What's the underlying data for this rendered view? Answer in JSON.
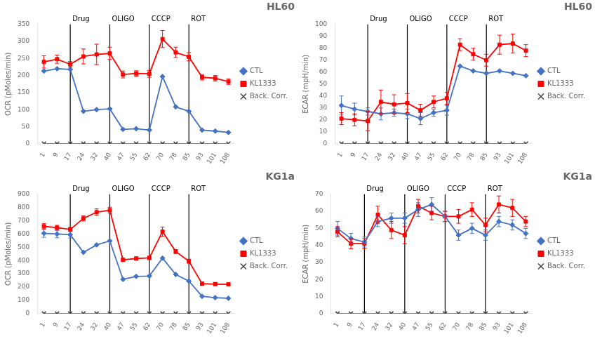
{
  "chart_data": [
    {
      "type": "line",
      "title": "HL60",
      "y_label": "OCR (pMoles/min)",
      "categories": [
        1,
        9,
        17,
        24,
        32,
        40,
        47,
        55,
        62,
        70,
        78,
        85,
        93,
        101,
        108
      ],
      "series": [
        {
          "name": "CTL",
          "color": "#4472C4",
          "marker": "diamond",
          "line_style": "solid",
          "values": [
            213,
            220,
            218,
            95,
            100,
            102,
            42,
            44,
            40,
            197,
            108,
            95,
            40,
            37,
            33
          ],
          "errors": [
            0,
            0,
            0,
            0,
            0,
            0,
            0,
            0,
            0,
            0,
            0,
            0,
            0,
            0,
            0
          ]
        },
        {
          "name": "KL1333",
          "color": "#FF0000",
          "marker": "square",
          "line_style": "solid",
          "values": [
            240,
            248,
            233,
            256,
            262,
            265,
            203,
            206,
            205,
            307,
            268,
            255,
            195,
            192,
            182
          ],
          "errors": [
            18,
            12,
            8,
            22,
            30,
            18,
            10,
            8,
            10,
            25,
            15,
            12,
            8,
            8,
            8
          ]
        },
        {
          "name": "Back. Corr.",
          "color": "#404040",
          "marker": "x",
          "line_style": "solid",
          "values": [
            0,
            0,
            0,
            0,
            0,
            0,
            0,
            0,
            0,
            0,
            0,
            0,
            0,
            0,
            0
          ]
        }
      ],
      "ylim": [
        0,
        350
      ],
      "yticks": [
        0,
        50,
        100,
        150,
        200,
        250,
        300,
        350
      ],
      "grid": false,
      "legend": "right",
      "annotations": [
        {
          "x": 17,
          "text": "Drug"
        },
        {
          "x": 40,
          "text": "OLIGO"
        },
        {
          "x": 62,
          "text": "CCCP"
        },
        {
          "x": 85,
          "text": "ROT"
        }
      ]
    },
    {
      "type": "line",
      "title": "HL60",
      "y_label": "ECAR (mpH/min)",
      "categories": [
        1,
        9,
        17,
        24,
        32,
        40,
        47,
        55,
        62,
        70,
        78,
        85,
        93,
        101,
        108
      ],
      "series": [
        {
          "name": "CTL",
          "color": "#4472C4",
          "marker": "diamond",
          "line_style": "solid",
          "values": [
            32,
            29,
            27,
            25,
            26,
            25,
            21,
            26,
            28,
            65,
            61,
            59,
            61,
            59,
            57
          ],
          "errors": [
            8,
            5,
            3,
            5,
            3,
            4,
            5,
            3,
            4,
            0,
            0,
            0,
            0,
            0,
            0
          ]
        },
        {
          "name": "KL1333",
          "color": "#FF0000",
          "marker": "square",
          "line_style": "solid",
          "values": [
            21,
            20,
            19,
            35,
            33,
            34,
            28,
            35,
            38,
            83,
            75,
            70,
            83,
            84,
            78
          ],
          "errors": [
            5,
            5,
            8,
            10,
            8,
            8,
            5,
            5,
            5,
            5,
            5,
            5,
            8,
            8,
            5
          ]
        },
        {
          "name": "Back. Corr.",
          "color": "#404040",
          "marker": "x",
          "line_style": "solid",
          "values": [
            0,
            0,
            0,
            0,
            0,
            0,
            0,
            0,
            0,
            0,
            0,
            0,
            0,
            0,
            0
          ]
        }
      ],
      "ylim": [
        0,
        100
      ],
      "yticks": [
        0,
        10,
        20,
        30,
        40,
        50,
        60,
        70,
        80,
        90,
        100
      ],
      "grid": false,
      "legend": "right",
      "annotations": [
        {
          "x": 17,
          "text": "Drug"
        },
        {
          "x": 40,
          "text": "OLIGO"
        },
        {
          "x": 62,
          "text": "CCCP"
        },
        {
          "x": 85,
          "text": "ROT"
        }
      ]
    },
    {
      "type": "line",
      "title": "KG1a",
      "y_label": "OCR (pMoles/min)",
      "categories": [
        1,
        9,
        17,
        24,
        32,
        40,
        47,
        55,
        62,
        70,
        78,
        85,
        93,
        101,
        108
      ],
      "series": [
        {
          "name": "CTL",
          "color": "#4472C4",
          "marker": "diamond",
          "line_style": "solid",
          "values": [
            605,
            600,
            595,
            462,
            518,
            548,
            258,
            280,
            283,
            418,
            295,
            245,
            130,
            120,
            115
          ],
          "errors": [
            30,
            28,
            25,
            0,
            0,
            0,
            0,
            0,
            0,
            0,
            0,
            0,
            0,
            0,
            0
          ]
        },
        {
          "name": "KL1333",
          "color": "#FF0000",
          "marker": "square",
          "line_style": "solid",
          "values": [
            658,
            648,
            635,
            718,
            765,
            780,
            405,
            415,
            420,
            618,
            468,
            395,
            225,
            222,
            220
          ],
          "errors": [
            20,
            18,
            15,
            20,
            25,
            22,
            12,
            12,
            12,
            35,
            15,
            15,
            12,
            12,
            12
          ]
        },
        {
          "name": "Back. Corr.",
          "color": "#404040",
          "marker": "x",
          "line_style": "solid",
          "values": [
            0,
            0,
            0,
            0,
            0,
            0,
            0,
            0,
            0,
            0,
            0,
            0,
            0,
            0,
            0
          ]
        }
      ],
      "ylim": [
        0,
        900
      ],
      "yticks": [
        0,
        100,
        200,
        300,
        400,
        500,
        600,
        700,
        800,
        900
      ],
      "grid": false,
      "legend": "right",
      "annotations": [
        {
          "x": 17,
          "text": "Drug"
        },
        {
          "x": 40,
          "text": "OLIGO"
        },
        {
          "x": 62,
          "text": "CCCP"
        },
        {
          "x": 85,
          "text": "ROT"
        }
      ]
    },
    {
      "type": "line",
      "title": "KG1a",
      "y_label": "ECAR (mpH/min)",
      "categories": [
        1,
        9,
        17,
        24,
        32,
        40,
        47,
        55,
        62,
        70,
        78,
        85,
        93,
        101,
        108
      ],
      "series": [
        {
          "name": "CTL",
          "color": "#4472C4",
          "marker": "diamond",
          "line_style": "solid",
          "values": [
            50,
            44,
            42,
            54,
            56,
            56,
            61,
            64,
            57,
            46,
            50,
            46,
            54,
            52,
            47
          ],
          "errors": [
            4,
            3,
            3,
            3,
            3,
            3,
            4,
            4,
            3,
            3,
            3,
            3,
            3,
            3,
            3
          ]
        },
        {
          "name": "KL1333",
          "color": "#FF0000",
          "marker": "square",
          "line_style": "solid",
          "values": [
            48,
            41,
            41,
            58,
            49,
            46,
            63,
            59,
            57,
            57,
            61,
            52,
            64,
            62,
            54
          ],
          "errors": [
            3,
            3,
            3,
            5,
            5,
            5,
            4,
            4,
            3,
            4,
            4,
            4,
            5,
            5,
            3
          ]
        },
        {
          "name": "Back. Corr.",
          "color": "#404040",
          "marker": "x",
          "line_style": "solid",
          "values": [
            0,
            0,
            0,
            0,
            0,
            0,
            0,
            0,
            0,
            0,
            0,
            0,
            0,
            0,
            0
          ]
        }
      ],
      "ylim": [
        0,
        70
      ],
      "yticks": [
        0,
        10,
        20,
        30,
        40,
        50,
        60,
        70
      ],
      "grid": false,
      "legend": "right",
      "annotations": [
        {
          "x": 17,
          "text": "Drug"
        },
        {
          "x": 40,
          "text": "OLIGO"
        },
        {
          "x": 62,
          "text": "CCCP"
        },
        {
          "x": 85,
          "text": "ROT"
        }
      ]
    }
  ]
}
